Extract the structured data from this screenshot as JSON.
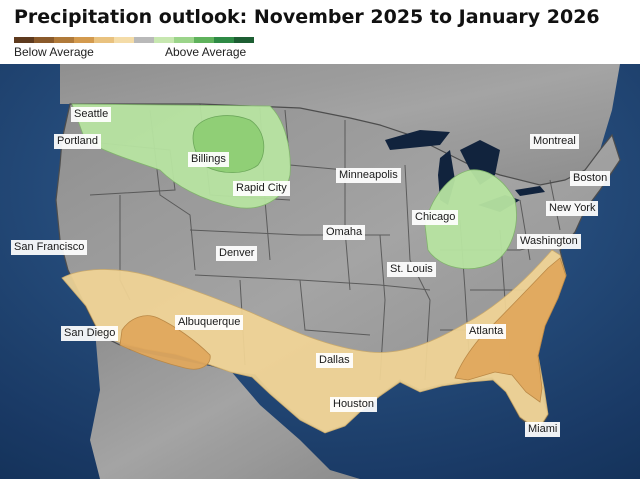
{
  "title": "Precipitation outlook: November 2025 to January 2026",
  "legend": {
    "below_label": "Below Average",
    "above_label": "Above Average",
    "colors": [
      "#5e3a1e",
      "#8a5a2b",
      "#b07a3a",
      "#d39a4e",
      "#e9c27f",
      "#f4dca8",
      "#b9b9b9",
      "#c7e7b0",
      "#9bd48a",
      "#5fb25c",
      "#2e8a45",
      "#1d5e33"
    ]
  },
  "zone_colors": {
    "below_light": "#f2d594",
    "below_medium": "#e0a75a",
    "above_light": "#b6e4a0",
    "above_medium": "#8ccd72"
  },
  "cities": [
    {
      "name": "Seattle"
    },
    {
      "name": "Portland"
    },
    {
      "name": "Billings"
    },
    {
      "name": "Rapid City"
    },
    {
      "name": "Minneapolis"
    },
    {
      "name": "Montreal"
    },
    {
      "name": "Boston"
    },
    {
      "name": "New York"
    },
    {
      "name": "Chicago"
    },
    {
      "name": "Omaha"
    },
    {
      "name": "Washington"
    },
    {
      "name": "San Francisco"
    },
    {
      "name": "Denver"
    },
    {
      "name": "St. Louis"
    },
    {
      "name": "San Diego"
    },
    {
      "name": "Albuquerque"
    },
    {
      "name": "Atlanta"
    },
    {
      "name": "Dallas"
    },
    {
      "name": "Houston"
    },
    {
      "name": "Miami"
    }
  ]
}
